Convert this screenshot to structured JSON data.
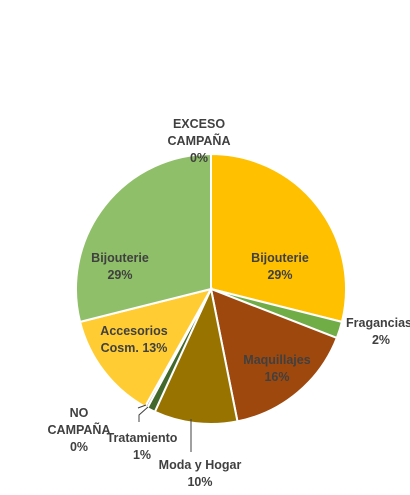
{
  "chart_data": {
    "type": "pie",
    "start": "top",
    "direction": "clockwise",
    "slices": [
      {
        "label": "Bijouterie",
        "value": 29,
        "value_text": "29%",
        "color": "#FFC000",
        "label_lines": [
          "Bijouterie"
        ],
        "pct_text": "29%"
      },
      {
        "label": "Fragancias",
        "value": 2,
        "value_text": "2%",
        "color": "#70AD47",
        "label_lines": [
          "Fragancias"
        ],
        "pct_text": "2%"
      },
      {
        "label": "Maquillajes",
        "value": 16,
        "value_text": "16%",
        "color": "#9E480E",
        "label_lines": [
          "Maquillajes"
        ],
        "pct_text": "16%"
      },
      {
        "label": "Moda y Hogar",
        "value": 10,
        "value_text": "10%",
        "color": "#997300",
        "label_lines": [
          "Moda y Hogar"
        ],
        "pct_text": "10%"
      },
      {
        "label": "Tratamiento",
        "value": 1,
        "value_text": "1%",
        "color": "#43682B",
        "label_lines": [
          "Tratamiento"
        ],
        "pct_text": "1%"
      },
      {
        "label": "NO CAMPAÑA",
        "value": 0.3,
        "value_text": "0%",
        "color": "#A5A5A5",
        "label_lines": [
          "NO",
          "CAMPAÑA"
        ],
        "pct_text": "0%"
      },
      {
        "label": "Accesorios Cosm.",
        "value": 13,
        "value_text": "13%",
        "color": "#FFCD33",
        "label_lines": [
          "Accesorios",
          "Cosm. 13%"
        ],
        "pct_text": ""
      },
      {
        "label": "Bijouterie",
        "value": 29,
        "value_text": "29%",
        "color": "#8FBF68",
        "label_lines": [
          "Bijouterie"
        ],
        "pct_text": "29%"
      },
      {
        "label": "EXCESO CAMPAÑA",
        "value": 0,
        "value_text": "0%",
        "color": "#5B9BD5",
        "label_lines": [
          "EXCESO",
          "CAMPAÑA"
        ],
        "pct_text": "0%"
      }
    ]
  }
}
